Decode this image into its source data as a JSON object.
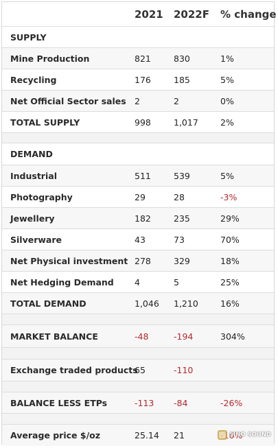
{
  "header": {
    "col_2021": "2021",
    "col_2022": "2022F",
    "col_change": "% change"
  },
  "colors": {
    "negative": "#b5282c",
    "border": "#dcdcdc",
    "alt_row": "#f7f7f7"
  },
  "rows": [
    {
      "label": "SUPPLY"
    },
    {
      "label": "Mine Production",
      "v2021": "821",
      "v2022": "830",
      "change": "1%"
    },
    {
      "label": "Recycling",
      "v2021": "176",
      "v2022": "185",
      "change": "5%"
    },
    {
      "label": "Net Official Sector sales",
      "v2021": "2",
      "v2022": "2",
      "change": "0%"
    },
    {
      "label": "TOTAL SUPPLY",
      "v2021": "998",
      "v2022": "1,017",
      "change": "2%"
    },
    {
      "label": ""
    },
    {
      "label": "DEMAND"
    },
    {
      "label": "Industrial",
      "v2021": "511",
      "v2022": "539",
      "change": "5%"
    },
    {
      "label": "Photography",
      "v2021": "29",
      "v2022": "28",
      "change": "-3%"
    },
    {
      "label": "Jewellery",
      "v2021": "182",
      "v2022": "235",
      "change": "29%"
    },
    {
      "label": "Silverware",
      "v2021": "43",
      "v2022": "73",
      "change": "70%"
    },
    {
      "label": "Net Physical investment",
      "v2021": "278",
      "v2022": "329",
      "change": "18%"
    },
    {
      "label": "Net Hedging Demand",
      "v2021": "4",
      "v2022": "5",
      "change": "25%"
    },
    {
      "label": "TOTAL DEMAND",
      "v2021": "1,046",
      "v2022": "1,210",
      "change": "16%"
    },
    {
      "label": ""
    },
    {
      "label": "MARKET BALANCE",
      "v2021": "-48",
      "v2022": "-194",
      "change": "304%"
    },
    {
      "label": ""
    },
    {
      "label": "Exchange traded products",
      "v2021": "65",
      "v2022": "-110",
      "change": ""
    },
    {
      "label": ""
    },
    {
      "label": "BALANCE LESS ETPs",
      "v2021": "-113",
      "v2022": "-84",
      "change": "-26%"
    },
    {
      "label": ""
    },
    {
      "label": "Average price $/oz",
      "v2021": "25.14",
      "v2022": "21",
      "change": "-16%"
    }
  ],
  "watermark": {
    "text": "SINO SOUND"
  }
}
